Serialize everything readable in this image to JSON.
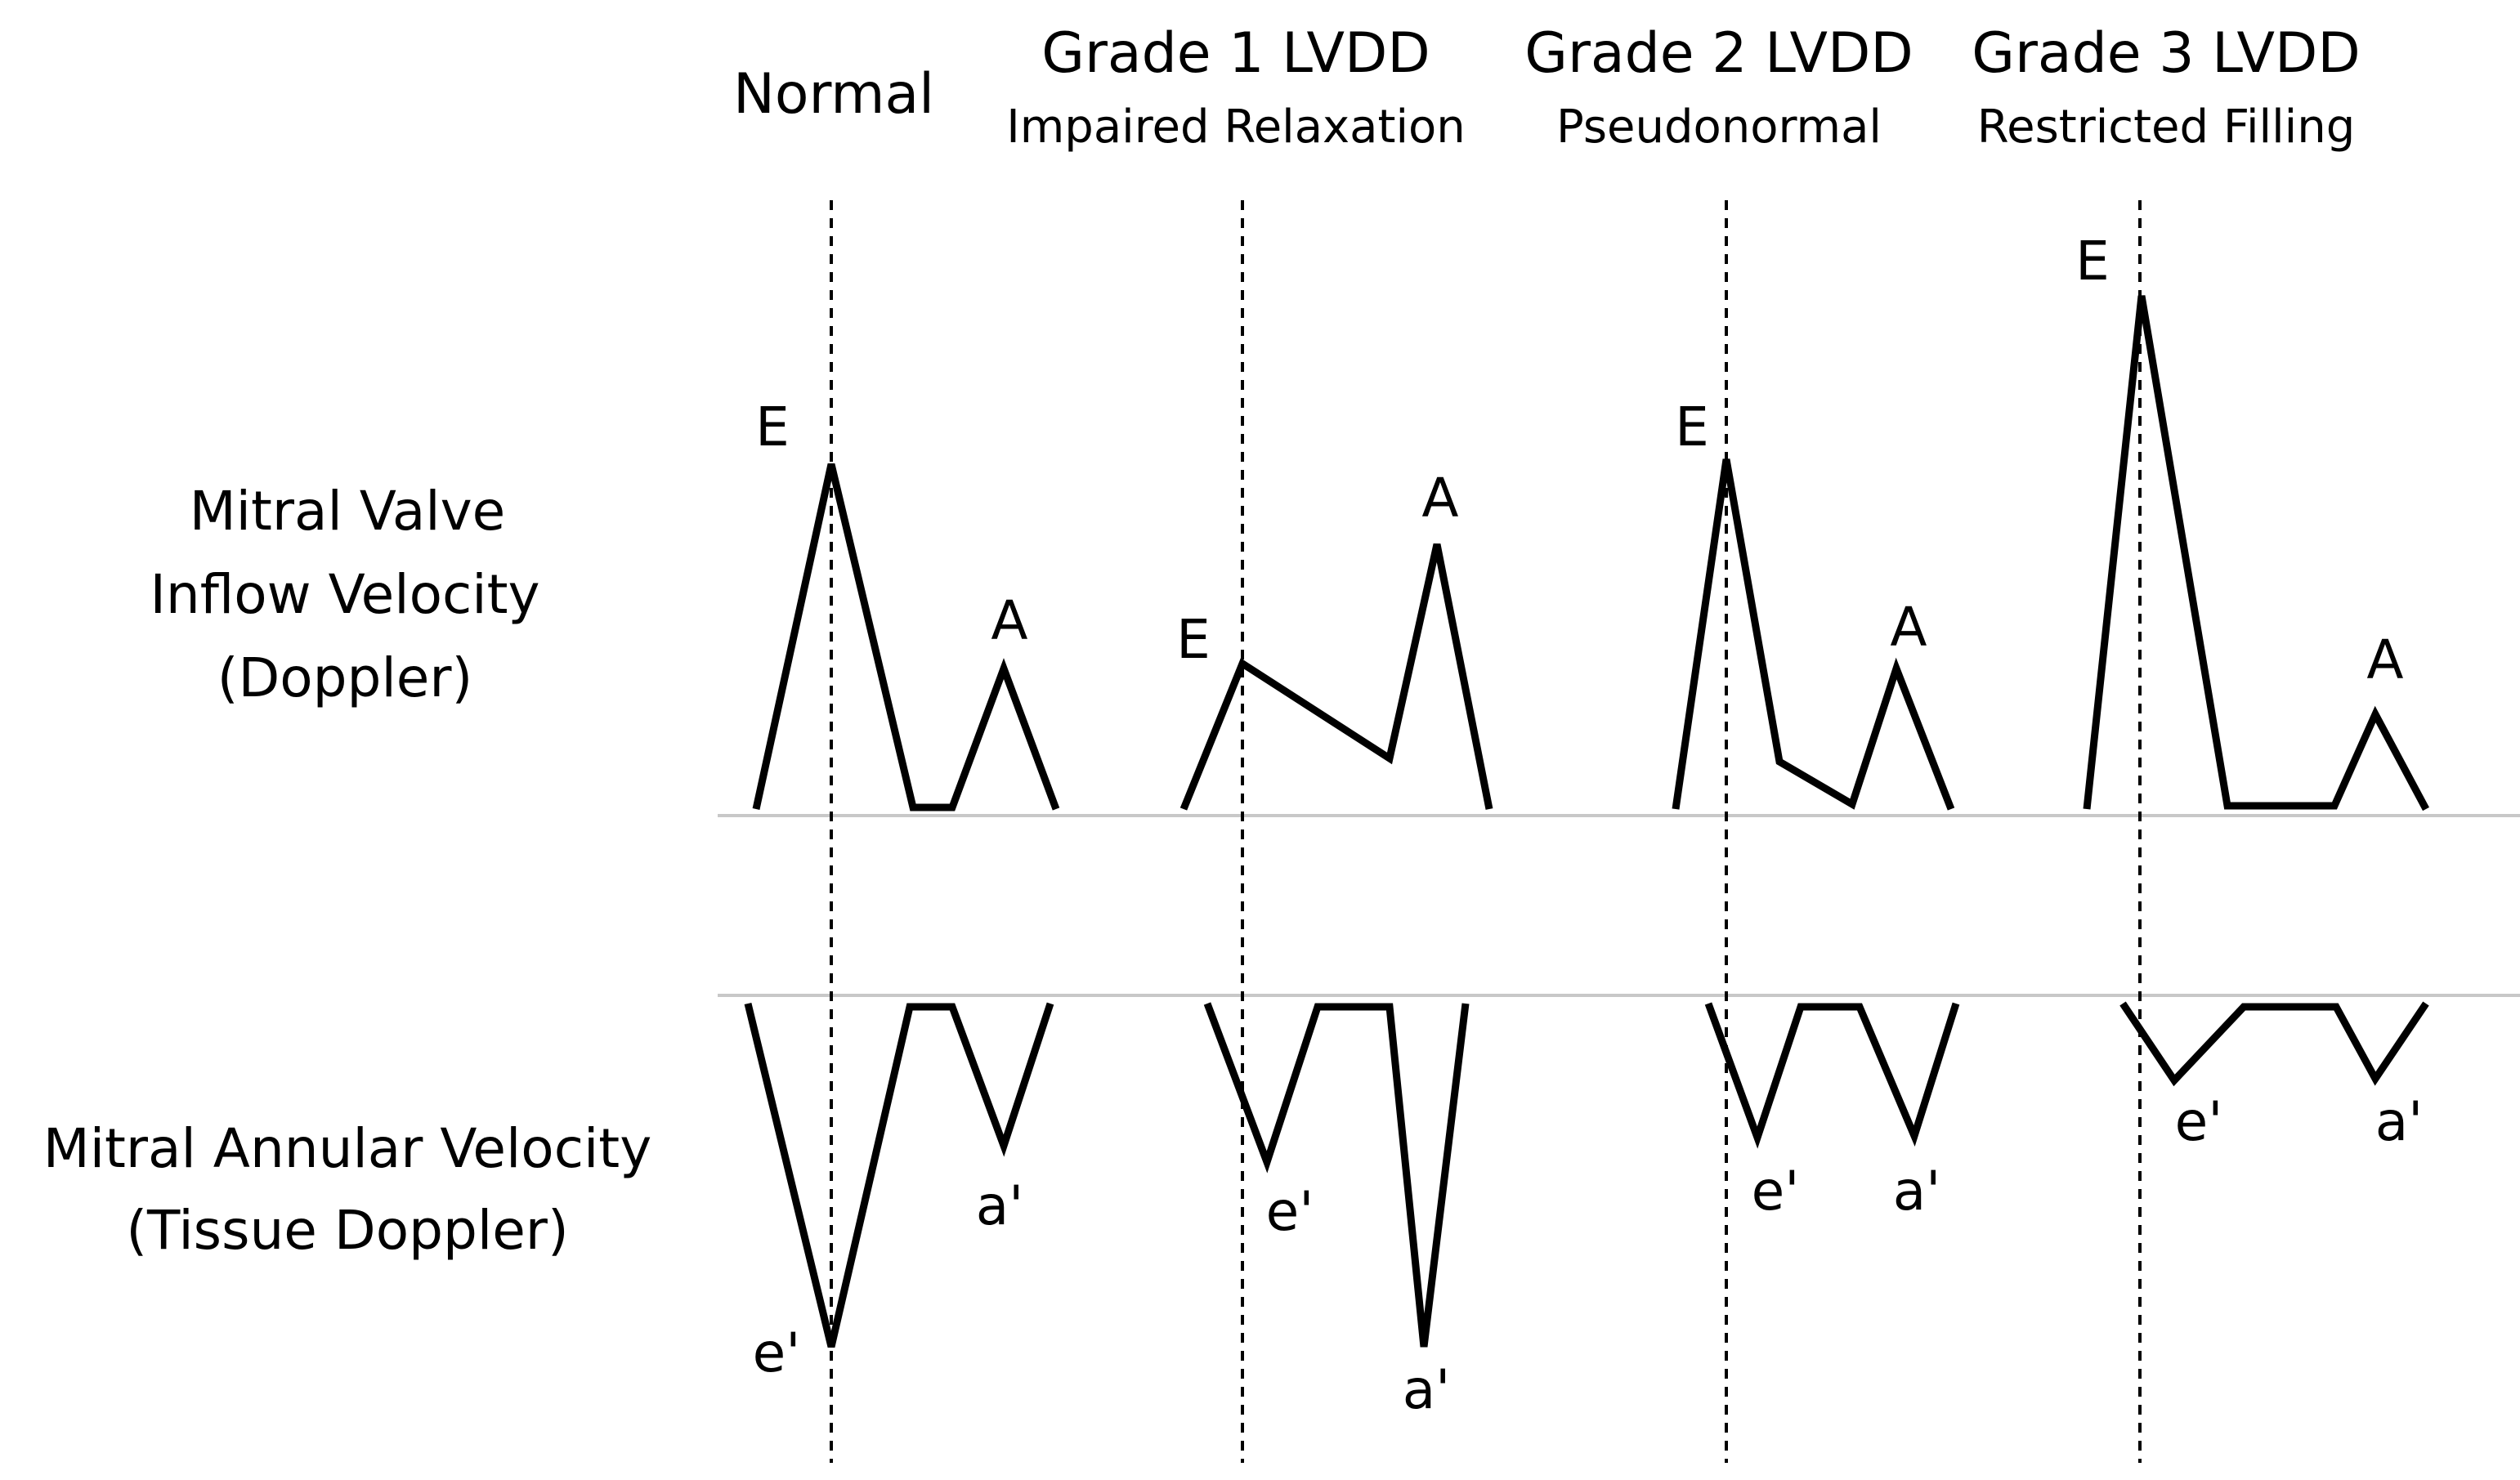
{
  "colors": {
    "ink": "#000000",
    "baseline": "#c8c8c8",
    "background": "#ffffff"
  },
  "headers": {
    "normal": {
      "title": "Normal"
    },
    "grade1": {
      "title": "Grade 1 LVDD",
      "subtitle": "Impaired Relaxation"
    },
    "grade2": {
      "title": "Grade 2 LVDD",
      "subtitle": "Pseudonormal"
    },
    "grade3": {
      "title": "Grade 3 LVDD",
      "subtitle": "Restricted Filling"
    }
  },
  "rows": {
    "inflow": {
      "line1": "Mitral Valve",
      "line2": "Inflow Velocity",
      "line3": "(Doppler)"
    },
    "annular": {
      "line1": "Mitral Annular Velocity",
      "line2": "(Tissue Doppler)"
    }
  },
  "wave_labels": {
    "E": "E",
    "A": "A",
    "e_prime": "e'",
    "a_prime": "a'"
  }
}
